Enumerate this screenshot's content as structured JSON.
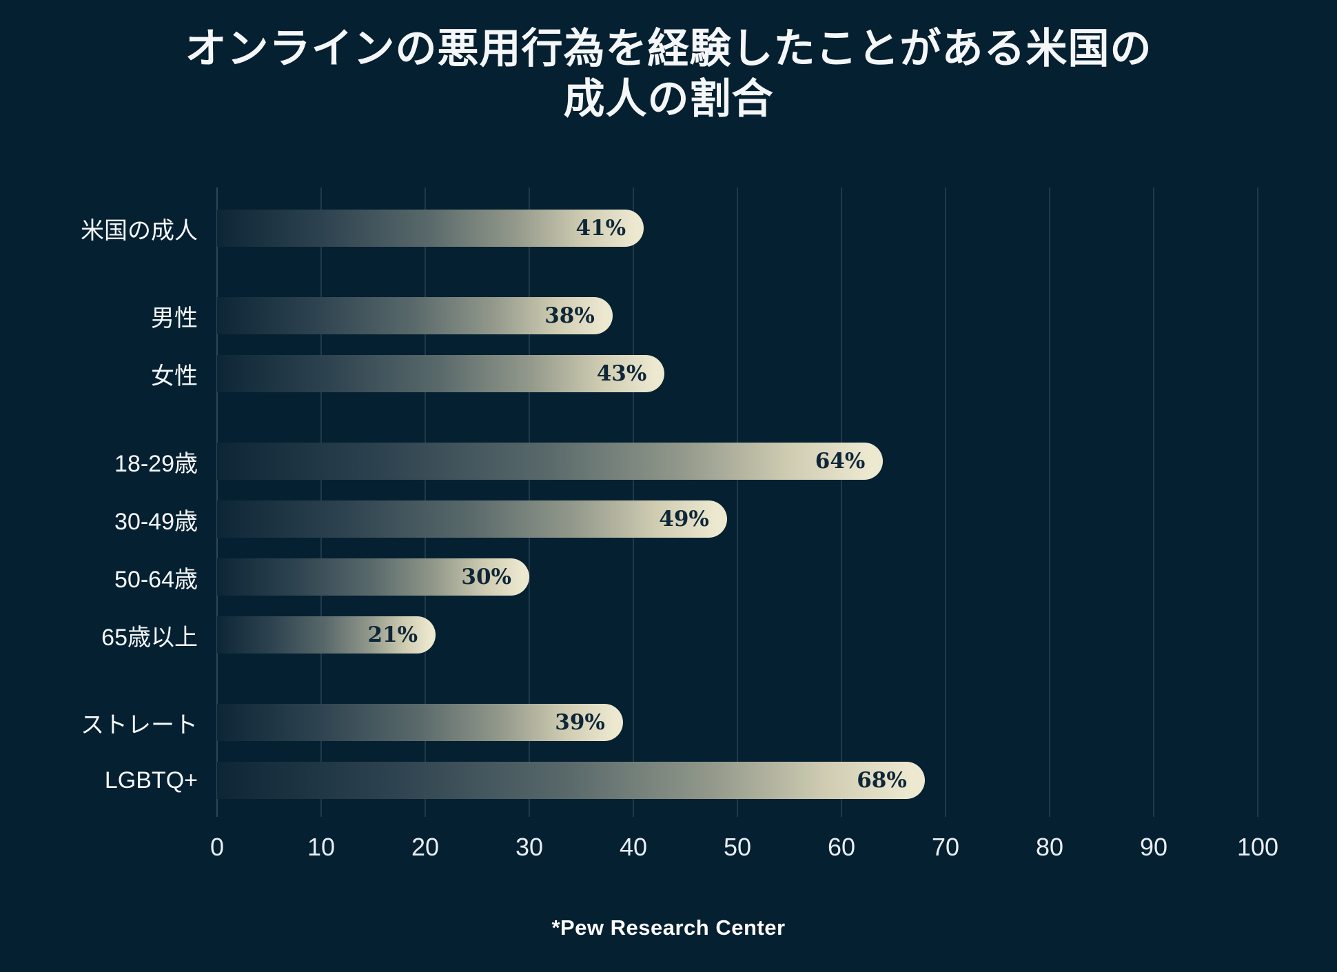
{
  "title": {
    "line1": "オンラインの悪用行為を経験したことがある米国の",
    "line2": "成人の割合"
  },
  "footer": {
    "source": "*Pew Research Center"
  },
  "chart_data": {
    "type": "bar",
    "orientation": "horizontal",
    "title": "オンラインの悪用行為を経験したことがある米国の成人の割合",
    "source_note": "*Pew Research Center",
    "xlabel": "",
    "ylabel": "",
    "xlim": [
      0,
      100
    ],
    "x_ticks": [
      0,
      10,
      20,
      30,
      40,
      50,
      60,
      70,
      80,
      90,
      100
    ],
    "grid": true,
    "legend": false,
    "value_suffix": "%",
    "groups": [
      {
        "rows": [
          {
            "label": "米国の成人",
            "value": 41
          }
        ]
      },
      {
        "rows": [
          {
            "label": "男性",
            "value": 38
          },
          {
            "label": "女性",
            "value": 43
          }
        ]
      },
      {
        "rows": [
          {
            "label": "18-29歳",
            "value": 64
          },
          {
            "label": "30-49歳",
            "value": 49
          },
          {
            "label": "50-64歳",
            "value": 30
          },
          {
            "label": "65歳以上",
            "value": 21
          }
        ]
      },
      {
        "rows": [
          {
            "label": "ストレート",
            "value": 39
          },
          {
            "label": "LGBTQ+",
            "value": 68
          }
        ]
      }
    ],
    "colors": {
      "background": "#052031",
      "bar_gradient_start": "#0d2636",
      "bar_gradient_end": "#ede9d1",
      "value_text": "#0e2637",
      "grid_line": "#22394b",
      "zero_axis_line": "#2e4759",
      "category_label_text": "#f4f7f8",
      "tick_label_text": "#e9eef2",
      "title_text": "#f4f6f7",
      "footer_text": "#ffffff"
    }
  }
}
